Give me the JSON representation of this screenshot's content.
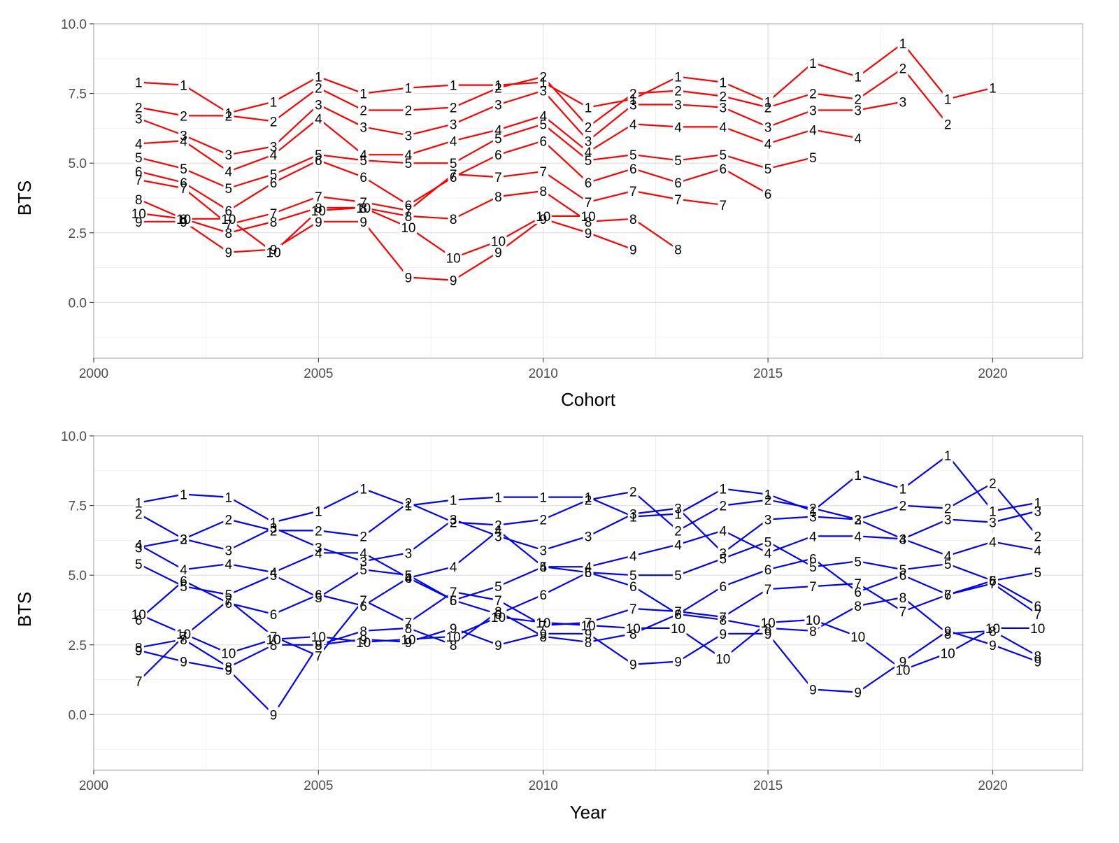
{
  "chart_data": [
    {
      "type": "line",
      "xlabel": "Cohort",
      "ylabel": "BTS",
      "xlim": [
        2000,
        2022
      ],
      "ylim": [
        -2,
        10
      ],
      "xticks": [
        "2000",
        "2005",
        "2010",
        "2015",
        "2020"
      ],
      "yticks": [
        "0.0",
        "2.5",
        "5.0",
        "7.5",
        "10.0"
      ],
      "color": "#ff0000",
      "grid": true,
      "series": [
        {
          "label": "1",
          "x": [
            2001,
            2002,
            2003,
            2004,
            2005,
            2006,
            2007,
            2008,
            2009,
            2010,
            2011,
            2012,
            2013,
            2014,
            2015,
            2016,
            2017,
            2018,
            2019,
            2020
          ],
          "y": [
            7.9,
            7.8,
            6.8,
            7.2,
            8.1,
            7.5,
            7.7,
            7.8,
            7.8,
            7.9,
            7.0,
            7.3,
            8.1,
            7.9,
            7.2,
            8.6,
            8.1,
            9.3,
            7.3,
            7.7
          ]
        },
        {
          "label": "2",
          "x": [
            2001,
            2002,
            2003,
            2004,
            2005,
            2006,
            2007,
            2008,
            2009,
            2010,
            2011,
            2012,
            2013,
            2014,
            2015,
            2016,
            2017,
            2018,
            2019
          ],
          "y": [
            7.0,
            6.7,
            6.7,
            6.5,
            7.7,
            6.9,
            6.9,
            7.0,
            7.7,
            8.1,
            6.3,
            7.5,
            7.6,
            7.4,
            7.0,
            7.5,
            7.3,
            8.4,
            6.4
          ]
        },
        {
          "label": "3",
          "x": [
            2001,
            2002,
            2003,
            2004,
            2005,
            2006,
            2007,
            2008,
            2009,
            2010,
            2011,
            2012,
            2013,
            2014,
            2015,
            2016,
            2017,
            2018
          ],
          "y": [
            6.6,
            6.0,
            5.3,
            5.6,
            7.1,
            6.3,
            6.0,
            6.4,
            7.1,
            7.6,
            5.8,
            7.1,
            7.1,
            7.0,
            6.3,
            6.9,
            6.9,
            7.2
          ]
        },
        {
          "label": "4",
          "x": [
            2001,
            2002,
            2003,
            2004,
            2005,
            2006,
            2007,
            2008,
            2009,
            2010,
            2011,
            2012,
            2013,
            2014,
            2015,
            2016,
            2017
          ],
          "y": [
            5.7,
            5.8,
            4.7,
            5.3,
            6.6,
            5.3,
            5.3,
            5.8,
            6.2,
            6.7,
            5.4,
            6.4,
            6.3,
            6.3,
            5.7,
            6.2,
            5.9
          ]
        },
        {
          "label": "5",
          "x": [
            2001,
            2002,
            2003,
            2004,
            2005,
            2006,
            2007,
            2008,
            2009,
            2010,
            2011,
            2012,
            2013,
            2014,
            2015,
            2016
          ],
          "y": [
            5.2,
            4.8,
            4.1,
            4.6,
            5.3,
            5.1,
            5.0,
            5.0,
            5.9,
            6.4,
            5.1,
            5.3,
            5.1,
            5.3,
            4.8,
            5.2
          ]
        },
        {
          "label": "6",
          "x": [
            2001,
            2002,
            2003,
            2004,
            2005,
            2006,
            2007,
            2008,
            2009,
            2010,
            2011,
            2012,
            2013,
            2014,
            2015
          ],
          "y": [
            4.7,
            4.3,
            3.3,
            4.3,
            5.1,
            4.5,
            3.5,
            4.5,
            5.3,
            5.8,
            4.3,
            4.8,
            4.3,
            4.8,
            3.9
          ]
        },
        {
          "label": "7",
          "x": [
            2001,
            2002,
            2003,
            2004,
            2005,
            2006,
            2007,
            2008,
            2009,
            2010,
            2011,
            2012,
            2013,
            2014
          ],
          "y": [
            4.4,
            4.1,
            2.8,
            3.2,
            3.8,
            3.6,
            3.3,
            4.6,
            4.5,
            4.7,
            3.6,
            4.0,
            3.7,
            3.5
          ]
        },
        {
          "label": "8",
          "x": [
            2001,
            2002,
            2003,
            2004,
            2005,
            2006,
            2007,
            2008,
            2009,
            2010,
            2011,
            2012,
            2013
          ],
          "y": [
            3.7,
            3.0,
            2.5,
            2.9,
            3.4,
            3.4,
            3.1,
            3.0,
            3.8,
            4.0,
            2.9,
            3.0,
            1.9
          ]
        },
        {
          "label": "9",
          "x": [
            2001,
            2002,
            2003,
            2004,
            2005,
            2006,
            2007,
            2008,
            2009,
            2010,
            2011,
            2012
          ],
          "y": [
            2.9,
            2.9,
            1.8,
            1.9,
            2.9,
            2.9,
            0.9,
            0.8,
            1.8,
            3.0,
            2.5,
            1.9
          ]
        },
        {
          "label": "10",
          "x": [
            2001,
            2002,
            2003,
            2004,
            2005,
            2006,
            2007,
            2008,
            2009,
            2010,
            2011
          ],
          "y": [
            3.2,
            3.0,
            3.0,
            1.8,
            3.3,
            3.4,
            2.7,
            1.6,
            2.2,
            3.1,
            3.1
          ]
        }
      ]
    },
    {
      "type": "line",
      "xlabel": "Year",
      "ylabel": "BTS",
      "xlim": [
        2000,
        2022
      ],
      "ylim": [
        -2,
        10
      ],
      "xticks": [
        "2000",
        "2005",
        "2010",
        "2015",
        "2020"
      ],
      "yticks": [
        "0.0",
        "2.5",
        "5.0",
        "7.5",
        "10.0"
      ],
      "color": "#0000ff",
      "grid": true,
      "series": [
        {
          "label": "1",
          "x": [
            2001,
            2002,
            2003,
            2004,
            2005,
            2006,
            2007,
            2008,
            2009,
            2010,
            2011,
            2012,
            2013,
            2014,
            2015,
            2016,
            2017,
            2018,
            2019,
            2020,
            2021
          ],
          "y": [
            7.6,
            7.9,
            7.8,
            6.9,
            7.3,
            8.1,
            7.5,
            7.7,
            7.8,
            7.8,
            7.8,
            7.1,
            7.2,
            8.1,
            7.9,
            7.3,
            8.6,
            8.1,
            9.3,
            7.3,
            7.6
          ]
        },
        {
          "label": "2",
          "x": [
            2001,
            2002,
            2003,
            2004,
            2005,
            2006,
            2007,
            2008,
            2009,
            2010,
            2011,
            2012,
            2013,
            2014,
            2015,
            2016,
            2017,
            2018,
            2019,
            2020,
            2021
          ],
          "y": [
            7.2,
            6.3,
            7.0,
            6.6,
            6.6,
            6.4,
            7.6,
            6.9,
            6.8,
            7.0,
            7.7,
            8.0,
            6.6,
            7.5,
            7.7,
            7.4,
            7.0,
            7.5,
            7.4,
            8.3,
            6.4
          ]
        },
        {
          "label": "3",
          "x": [
            2001,
            2002,
            2003,
            2004,
            2005,
            2006,
            2007,
            2008,
            2009,
            2010,
            2011,
            2012,
            2013,
            2014,
            2015,
            2016,
            2017,
            2018,
            2019,
            2020,
            2021
          ],
          "y": [
            6.0,
            6.3,
            5.9,
            6.7,
            6.0,
            5.5,
            5.8,
            7.0,
            6.4,
            5.9,
            6.4,
            7.2,
            7.4,
            5.8,
            7.0,
            7.1,
            7.0,
            6.3,
            7.0,
            6.9,
            7.3
          ]
        },
        {
          "label": "4",
          "x": [
            2001,
            2002,
            2003,
            2004,
            2005,
            2006,
            2007,
            2008,
            2009,
            2010,
            2011,
            2012,
            2013,
            2014,
            2015,
            2016,
            2017,
            2018,
            2019,
            2020,
            2021
          ],
          "y": [
            6.1,
            5.2,
            5.4,
            5.1,
            5.8,
            5.8,
            4.9,
            5.3,
            6.6,
            5.3,
            5.3,
            5.7,
            6.1,
            6.6,
            5.8,
            6.4,
            6.4,
            6.3,
            5.7,
            6.2,
            5.9
          ]
        },
        {
          "label": "5",
          "x": [
            2001,
            2002,
            2003,
            2004,
            2005,
            2006,
            2007,
            2008,
            2009,
            2010,
            2011,
            2012,
            2013,
            2014,
            2015,
            2016,
            2017,
            2018,
            2019,
            2020,
            2021
          ],
          "y": [
            5.4,
            4.6,
            4.3,
            5.0,
            4.2,
            5.2,
            5.0,
            4.1,
            4.6,
            5.3,
            5.1,
            5.0,
            5.0,
            5.6,
            6.2,
            5.3,
            5.5,
            5.2,
            5.4,
            4.8,
            5.1
          ]
        },
        {
          "label": "6",
          "x": [
            2001,
            2002,
            2003,
            2004,
            2005,
            2006,
            2007,
            2008,
            2009,
            2010,
            2011,
            2012,
            2013,
            2014,
            2015,
            2016,
            2017,
            2018,
            2019,
            2020,
            2021
          ],
          "y": [
            3.4,
            4.8,
            4.0,
            3.6,
            4.3,
            3.9,
            4.9,
            4.1,
            3.6,
            4.3,
            5.1,
            4.6,
            3.6,
            4.6,
            5.2,
            5.6,
            4.4,
            5.0,
            4.3,
            4.8,
            3.9
          ]
        },
        {
          "label": "7",
          "x": [
            2001,
            2002,
            2003,
            2004,
            2005,
            2006,
            2007,
            2008,
            2009,
            2010,
            2011,
            2012,
            2013,
            2014,
            2015,
            2016,
            2017,
            2018,
            2019,
            2020,
            2021
          ],
          "y": [
            1.2,
            2.8,
            4.1,
            2.8,
            2.1,
            4.1,
            3.3,
            4.4,
            4.1,
            3.2,
            3.3,
            3.8,
            3.7,
            3.5,
            4.5,
            4.6,
            4.7,
            3.7,
            4.3,
            4.7,
            3.6
          ]
        },
        {
          "label": "8",
          "x": [
            2001,
            2002,
            2003,
            2004,
            2005,
            2006,
            2007,
            2008,
            2009,
            2010,
            2011,
            2012,
            2013,
            2014,
            2015,
            2016,
            2017,
            2018,
            2019,
            2020,
            2021
          ],
          "y": [
            2.4,
            2.7,
            1.7,
            2.5,
            2.5,
            3.0,
            3.1,
            2.5,
            3.7,
            2.8,
            2.6,
            2.9,
            3.6,
            3.4,
            3.1,
            3.0,
            3.9,
            4.2,
            2.9,
            3.0,
            2.1
          ]
        },
        {
          "label": "9",
          "x": [
            2001,
            2002,
            2003,
            2004,
            2005,
            2006,
            2007,
            2008,
            2009,
            2010,
            2011,
            2012,
            2013,
            2014,
            2015,
            2016,
            2017,
            2018,
            2019,
            2020,
            2021
          ],
          "y": [
            2.3,
            1.9,
            1.6,
            0.0,
            2.5,
            2.7,
            2.6,
            3.1,
            2.5,
            2.9,
            2.9,
            1.8,
            1.9,
            2.9,
            2.9,
            0.9,
            0.8,
            1.9,
            3.0,
            2.5,
            1.9
          ]
        },
        {
          "label": "10",
          "x": [
            2001,
            2002,
            2003,
            2004,
            2005,
            2006,
            2007,
            2008,
            2009,
            2010,
            2011,
            2012,
            2013,
            2014,
            2015,
            2016,
            2017,
            2018,
            2019,
            2020,
            2021
          ],
          "y": [
            3.6,
            2.9,
            2.2,
            2.7,
            2.8,
            2.6,
            2.7,
            2.8,
            3.5,
            3.3,
            3.2,
            3.1,
            3.1,
            2.0,
            3.3,
            3.4,
            2.8,
            1.6,
            2.2,
            3.1,
            3.1
          ]
        }
      ]
    }
  ]
}
